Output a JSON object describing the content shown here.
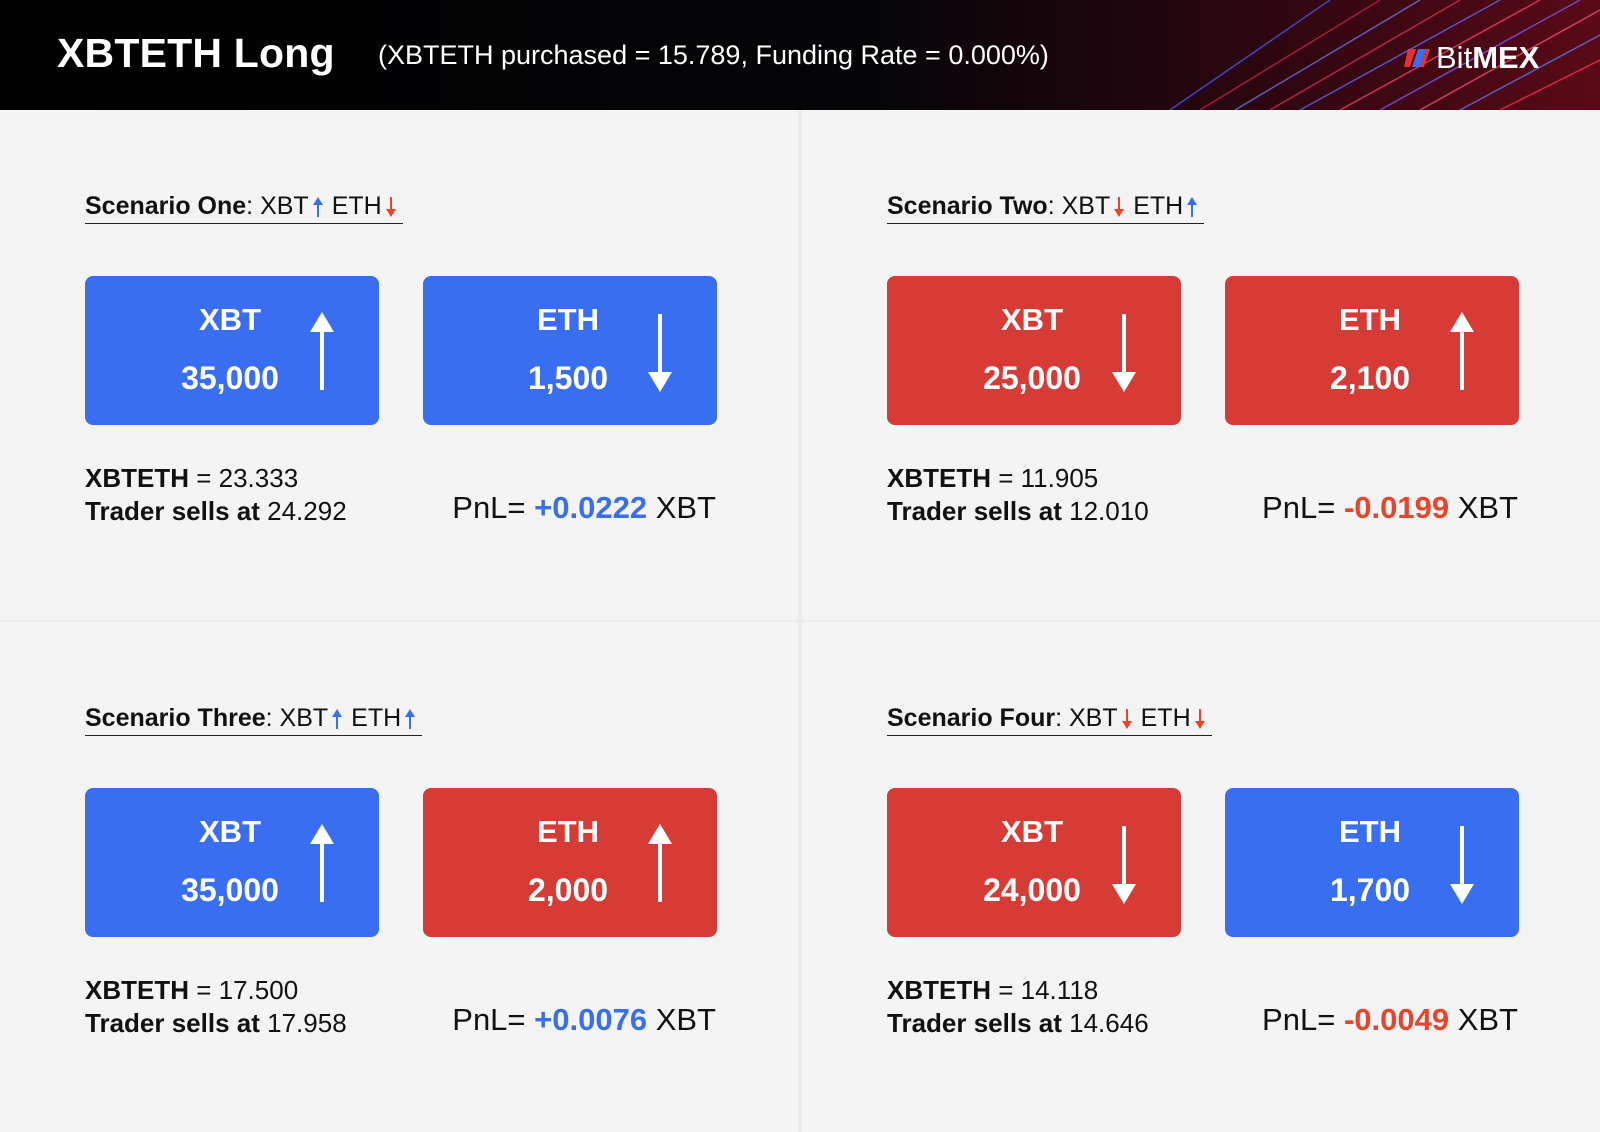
{
  "header": {
    "title": "XBTETH Long",
    "subtitle": "(XBTETH purchased = 15.789, Funding Rate = 0.000%)",
    "logo": {
      "prefix": "Bit",
      "suffix": "MEX",
      "mark_colors": [
        "#e8302c",
        "#3a6ef0"
      ]
    }
  },
  "colors": {
    "up_box": "#3a6ef0",
    "down_box": "#d63b35",
    "positive": "#3a6ef0",
    "negative": "#e8452c"
  },
  "scenarios": [
    {
      "name": "Scenario One",
      "xbt_dir": "up",
      "eth_dir": "down",
      "xbt": {
        "label": "XBT",
        "value": "35,000",
        "dir": "up",
        "color": "blue"
      },
      "eth": {
        "label": "ETH",
        "value": "1,500",
        "dir": "down",
        "color": "blue"
      },
      "xbteth_label": "XBTETH",
      "xbteth": "= 23.333",
      "sells_label": "Trader sells at",
      "sells": "24.292",
      "pnl_label": "PnL=",
      "pnl_value": "+0.0222",
      "pnl_unit": "XBT",
      "pnl_sign": "pos"
    },
    {
      "name": "Scenario Two",
      "xbt_dir": "down",
      "eth_dir": "up",
      "xbt": {
        "label": "XBT",
        "value": "25,000",
        "dir": "down",
        "color": "red"
      },
      "eth": {
        "label": "ETH",
        "value": "2,100",
        "dir": "up",
        "color": "red"
      },
      "xbteth_label": "XBTETH",
      "xbteth": "= 11.905",
      "sells_label": "Trader sells at",
      "sells": "12.010",
      "pnl_label": "PnL=",
      "pnl_value": "-0.0199",
      "pnl_unit": "XBT",
      "pnl_sign": "neg"
    },
    {
      "name": "Scenario Three",
      "xbt_dir": "up",
      "eth_dir": "up",
      "xbt": {
        "label": "XBT",
        "value": "35,000",
        "dir": "up",
        "color": "blue"
      },
      "eth": {
        "label": "ETH",
        "value": "2,000",
        "dir": "up",
        "color": "red"
      },
      "xbteth_label": "XBTETH",
      "xbteth": "= 17.500",
      "sells_label": "Trader sells at",
      "sells": "17.958",
      "pnl_label": "PnL=",
      "pnl_value": "+0.0076",
      "pnl_unit": "XBT",
      "pnl_sign": "pos"
    },
    {
      "name": "Scenario Four",
      "xbt_dir": "down",
      "eth_dir": "down",
      "xbt": {
        "label": "XBT",
        "value": "24,000",
        "dir": "down",
        "color": "red"
      },
      "eth": {
        "label": "ETH",
        "value": "1,700",
        "dir": "down",
        "color": "blue"
      },
      "xbteth_label": "XBTETH",
      "xbteth": "= 14.118",
      "sells_label": "Trader sells at",
      "sells": "14.646",
      "pnl_label": "PnL=",
      "pnl_value": "-0.0049",
      "pnl_unit": "XBT",
      "pnl_sign": "neg"
    }
  ],
  "coin_labels": {
    "xbt": "XBT",
    "eth": "ETH"
  }
}
